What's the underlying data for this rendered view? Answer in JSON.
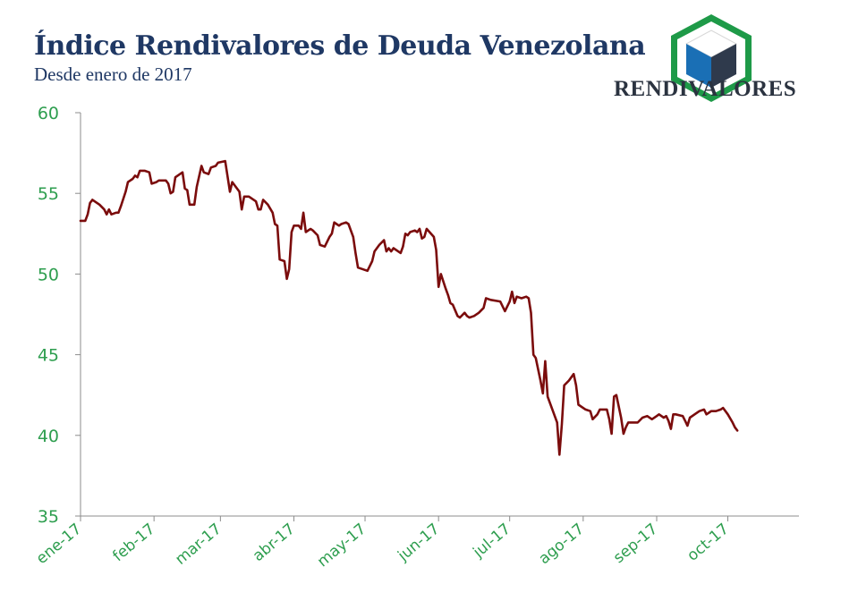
{
  "header": {
    "title": "Índice Rendivalores de Deuda Venezolana",
    "subtitle": "Desde enero de 2017"
  },
  "logo": {
    "text": "RENDIVALORES",
    "icon": "cube-icon",
    "colors": {
      "frame": "#1e9a48",
      "cube_top": "#ffffff",
      "cube_left": "#1a6fb5",
      "cube_right": "#2f3a4c"
    }
  },
  "colors": {
    "line": "#7b0c0c",
    "axis": "#8c8c8c",
    "tick_text": "#2e9e4f",
    "title": "#1f3864"
  },
  "chart_data": {
    "type": "line",
    "title": "Índice Rendivalores de Deuda Venezolana",
    "subtitle": "Desde enero de 2017",
    "xlabel": "",
    "ylabel": "",
    "ylim": [
      35,
      60
    ],
    "yticks": [
      35,
      40,
      45,
      50,
      55,
      60
    ],
    "xlim": [
      "2017-01-01",
      "2017-10-31"
    ],
    "xticks": [
      {
        "date": "2017-01-01",
        "label": "ene-17"
      },
      {
        "date": "2017-02-01",
        "label": "feb-17"
      },
      {
        "date": "2017-03-01",
        "label": "mar-17"
      },
      {
        "date": "2017-04-01",
        "label": "abr-17"
      },
      {
        "date": "2017-05-01",
        "label": "may-17"
      },
      {
        "date": "2017-06-01",
        "label": "jun-17"
      },
      {
        "date": "2017-07-01",
        "label": "jul-17"
      },
      {
        "date": "2017-08-01",
        "label": "ago-17"
      },
      {
        "date": "2017-09-01",
        "label": "sep-17"
      },
      {
        "date": "2017-10-01",
        "label": "oct-17"
      }
    ],
    "grid": false,
    "legend": "none",
    "series": [
      {
        "points": [
          [
            "2017-01-01",
            53.3
          ],
          [
            "2017-01-03",
            53.3
          ],
          [
            "2017-01-04",
            53.7
          ],
          [
            "2017-01-05",
            54.4
          ],
          [
            "2017-01-06",
            54.6
          ],
          [
            "2017-01-09",
            54.3
          ],
          [
            "2017-01-11",
            54.0
          ],
          [
            "2017-01-12",
            53.7
          ],
          [
            "2017-01-13",
            54.0
          ],
          [
            "2017-01-14",
            53.7
          ],
          [
            "2017-01-16",
            53.8
          ],
          [
            "2017-01-17",
            53.8
          ],
          [
            "2017-01-18",
            54.2
          ],
          [
            "2017-01-20",
            55.1
          ],
          [
            "2017-01-21",
            55.7
          ],
          [
            "2017-01-23",
            55.9
          ],
          [
            "2017-01-24",
            56.1
          ],
          [
            "2017-01-25",
            56.0
          ],
          [
            "2017-01-26",
            56.4
          ],
          [
            "2017-01-28",
            56.4
          ],
          [
            "2017-01-30",
            56.3
          ],
          [
            "2017-01-31",
            55.6
          ],
          [
            "2017-02-02",
            55.7
          ],
          [
            "2017-02-03",
            55.8
          ],
          [
            "2017-02-06",
            55.8
          ],
          [
            "2017-02-07",
            55.6
          ],
          [
            "2017-02-08",
            55.0
          ],
          [
            "2017-02-09",
            55.1
          ],
          [
            "2017-02-10",
            56.0
          ],
          [
            "2017-02-13",
            56.3
          ],
          [
            "2017-02-14",
            55.3
          ],
          [
            "2017-02-15",
            55.2
          ],
          [
            "2017-02-16",
            54.3
          ],
          [
            "2017-02-18",
            54.3
          ],
          [
            "2017-02-19",
            55.4
          ],
          [
            "2017-02-21",
            56.7
          ],
          [
            "2017-02-22",
            56.3
          ],
          [
            "2017-02-24",
            56.2
          ],
          [
            "2017-02-25",
            56.6
          ],
          [
            "2017-02-27",
            56.7
          ],
          [
            "2017-02-28",
            56.9
          ],
          [
            "2017-03-03",
            57.0
          ],
          [
            "2017-03-05",
            55.1
          ],
          [
            "2017-03-06",
            55.7
          ],
          [
            "2017-03-09",
            55.1
          ],
          [
            "2017-03-10",
            54.0
          ],
          [
            "2017-03-11",
            54.8
          ],
          [
            "2017-03-13",
            54.8
          ],
          [
            "2017-03-16",
            54.5
          ],
          [
            "2017-03-17",
            54.0
          ],
          [
            "2017-03-18",
            54.0
          ],
          [
            "2017-03-19",
            54.6
          ],
          [
            "2017-03-21",
            54.3
          ],
          [
            "2017-03-23",
            53.8
          ],
          [
            "2017-03-24",
            53.1
          ],
          [
            "2017-03-25",
            53.0
          ],
          [
            "2017-03-26",
            50.9
          ],
          [
            "2017-03-28",
            50.8
          ],
          [
            "2017-03-29",
            49.7
          ],
          [
            "2017-03-30",
            50.3
          ],
          [
            "2017-03-31",
            52.6
          ],
          [
            "2017-04-01",
            53.0
          ],
          [
            "2017-04-03",
            53.0
          ],
          [
            "2017-04-04",
            52.8
          ],
          [
            "2017-04-05",
            53.8
          ],
          [
            "2017-04-06",
            52.6
          ],
          [
            "2017-04-08",
            52.8
          ],
          [
            "2017-04-09",
            52.7
          ],
          [
            "2017-04-11",
            52.4
          ],
          [
            "2017-04-12",
            51.8
          ],
          [
            "2017-04-14",
            51.7
          ],
          [
            "2017-04-16",
            52.3
          ],
          [
            "2017-04-17",
            52.5
          ],
          [
            "2017-04-18",
            53.2
          ],
          [
            "2017-04-19",
            53.1
          ],
          [
            "2017-04-20",
            53.0
          ],
          [
            "2017-04-21",
            53.1
          ],
          [
            "2017-04-23",
            53.2
          ],
          [
            "2017-04-24",
            53.1
          ],
          [
            "2017-04-26",
            52.3
          ],
          [
            "2017-04-27",
            51.3
          ],
          [
            "2017-04-28",
            50.4
          ],
          [
            "2017-05-02",
            50.2
          ],
          [
            "2017-05-04",
            50.8
          ],
          [
            "2017-05-05",
            51.4
          ],
          [
            "2017-05-07",
            51.8
          ],
          [
            "2017-05-09",
            52.1
          ],
          [
            "2017-05-10",
            51.4
          ],
          [
            "2017-05-11",
            51.6
          ],
          [
            "2017-05-12",
            51.4
          ],
          [
            "2017-05-13",
            51.6
          ],
          [
            "2017-05-16",
            51.3
          ],
          [
            "2017-05-17",
            51.7
          ],
          [
            "2017-05-18",
            52.5
          ],
          [
            "2017-05-19",
            52.4
          ],
          [
            "2017-05-20",
            52.6
          ],
          [
            "2017-05-22",
            52.7
          ],
          [
            "2017-05-23",
            52.6
          ],
          [
            "2017-05-24",
            52.8
          ],
          [
            "2017-05-25",
            52.2
          ],
          [
            "2017-05-26",
            52.3
          ],
          [
            "2017-05-27",
            52.8
          ],
          [
            "2017-05-30",
            52.3
          ],
          [
            "2017-05-31",
            51.5
          ],
          [
            "2017-06-01",
            49.2
          ],
          [
            "2017-06-02",
            50.0
          ],
          [
            "2017-06-04",
            49.1
          ],
          [
            "2017-06-05",
            48.7
          ],
          [
            "2017-06-06",
            48.2
          ],
          [
            "2017-06-07",
            48.1
          ],
          [
            "2017-06-09",
            47.4
          ],
          [
            "2017-06-10",
            47.3
          ],
          [
            "2017-06-12",
            47.6
          ],
          [
            "2017-06-13",
            47.4
          ],
          [
            "2017-06-14",
            47.3
          ],
          [
            "2017-06-16",
            47.4
          ],
          [
            "2017-06-18",
            47.6
          ],
          [
            "2017-06-20",
            47.9
          ],
          [
            "2017-06-21",
            48.5
          ],
          [
            "2017-06-23",
            48.4
          ],
          [
            "2017-06-27",
            48.3
          ],
          [
            "2017-06-29",
            47.7
          ],
          [
            "2017-07-01",
            48.3
          ],
          [
            "2017-07-02",
            48.9
          ],
          [
            "2017-07-03",
            48.2
          ],
          [
            "2017-07-04",
            48.6
          ],
          [
            "2017-07-06",
            48.5
          ],
          [
            "2017-07-08",
            48.6
          ],
          [
            "2017-07-09",
            48.5
          ],
          [
            "2017-07-10",
            47.6
          ],
          [
            "2017-07-11",
            45.0
          ],
          [
            "2017-07-12",
            44.8
          ],
          [
            "2017-07-14",
            43.4
          ],
          [
            "2017-07-15",
            42.6
          ],
          [
            "2017-07-16",
            44.6
          ],
          [
            "2017-07-17",
            42.4
          ],
          [
            "2017-07-19",
            41.6
          ],
          [
            "2017-07-21",
            40.8
          ],
          [
            "2017-07-22",
            38.8
          ],
          [
            "2017-07-23",
            40.7
          ],
          [
            "2017-07-24",
            43.1
          ],
          [
            "2017-07-26",
            43.4
          ],
          [
            "2017-07-28",
            43.8
          ],
          [
            "2017-07-29",
            43.1
          ],
          [
            "2017-07-30",
            41.9
          ],
          [
            "2017-08-02",
            41.6
          ],
          [
            "2017-08-04",
            41.5
          ],
          [
            "2017-08-05",
            41.0
          ],
          [
            "2017-08-07",
            41.3
          ],
          [
            "2017-08-08",
            41.6
          ],
          [
            "2017-08-11",
            41.6
          ],
          [
            "2017-08-12",
            41.0
          ],
          [
            "2017-08-13",
            40.1
          ],
          [
            "2017-08-14",
            42.4
          ],
          [
            "2017-08-15",
            42.5
          ],
          [
            "2017-08-17",
            41.1
          ],
          [
            "2017-08-18",
            40.1
          ],
          [
            "2017-08-19",
            40.5
          ],
          [
            "2017-08-20",
            40.8
          ],
          [
            "2017-08-22",
            40.8
          ],
          [
            "2017-08-24",
            40.8
          ],
          [
            "2017-08-26",
            41.1
          ],
          [
            "2017-08-28",
            41.2
          ],
          [
            "2017-08-30",
            41.0
          ],
          [
            "2017-09-01",
            41.2
          ],
          [
            "2017-09-02",
            41.3
          ],
          [
            "2017-09-04",
            41.1
          ],
          [
            "2017-09-05",
            41.2
          ],
          [
            "2017-09-06",
            40.9
          ],
          [
            "2017-09-07",
            40.4
          ],
          [
            "2017-09-08",
            41.3
          ],
          [
            "2017-09-09",
            41.3
          ],
          [
            "2017-09-12",
            41.2
          ],
          [
            "2017-09-13",
            40.9
          ],
          [
            "2017-09-14",
            40.6
          ],
          [
            "2017-09-15",
            41.1
          ],
          [
            "2017-09-17",
            41.3
          ],
          [
            "2017-09-19",
            41.5
          ],
          [
            "2017-09-21",
            41.6
          ],
          [
            "2017-09-22",
            41.3
          ],
          [
            "2017-09-23",
            41.4
          ],
          [
            "2017-09-24",
            41.5
          ],
          [
            "2017-09-26",
            41.5
          ],
          [
            "2017-09-28",
            41.6
          ],
          [
            "2017-09-29",
            41.7
          ],
          [
            "2017-10-01",
            41.3
          ],
          [
            "2017-10-03",
            40.8
          ],
          [
            "2017-10-04",
            40.5
          ],
          [
            "2017-10-05",
            40.3
          ]
        ]
      }
    ]
  }
}
